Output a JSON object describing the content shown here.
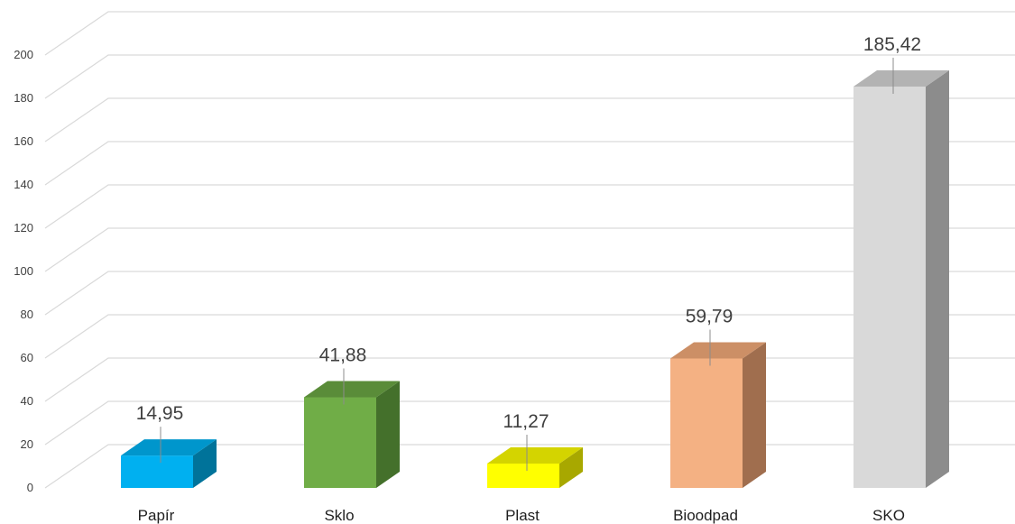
{
  "chart_data": {
    "type": "bar",
    "title": "",
    "xlabel": "",
    "ylabel": "",
    "ylim": [
      0,
      200
    ],
    "yticks": [
      0,
      20,
      40,
      60,
      80,
      100,
      120,
      140,
      160,
      180,
      200
    ],
    "grid": true,
    "legend": "none",
    "style": "3d-column",
    "categories": [
      "Papír",
      "Sklo",
      "Plast",
      "Bioodpad",
      "SKO"
    ],
    "values": [
      14.95,
      41.88,
      11.27,
      59.79,
      185.42
    ],
    "value_labels": [
      "14,95",
      "41,88",
      "11,27",
      "59,79",
      "185,42"
    ],
    "colors": {
      "front": [
        "#00b0f0",
        "#70ad47",
        "#ffff00",
        "#f4b183",
        "#d9d9d9"
      ],
      "top": [
        "#0096cc",
        "#5a8c39",
        "#d4d400",
        "#cc8f66",
        "#b3b3b3"
      ],
      "side": [
        "#00739a",
        "#44702b",
        "#a8a800",
        "#a06e4e",
        "#8c8c8c"
      ]
    }
  }
}
